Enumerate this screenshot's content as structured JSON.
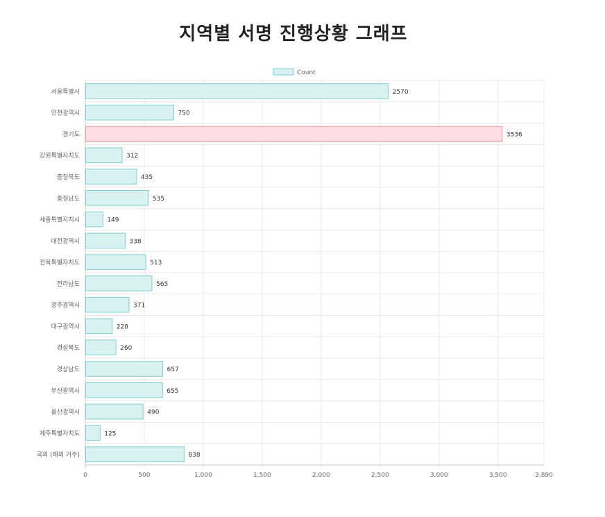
{
  "page": {
    "title": "지역별 서명 진행상황 그래프"
  },
  "chart_data": {
    "type": "bar",
    "orientation": "horizontal",
    "title": "지역별 서명 진행상황 그래프",
    "legend": {
      "position": "top",
      "label": "Count"
    },
    "categories": [
      "서울특별시",
      "인천광역시",
      "경기도",
      "강원특별자치도",
      "충청북도",
      "충청남도",
      "세종특별자치시",
      "대전광역시",
      "전북특별자치도",
      "전라남도",
      "광주광역시",
      "대구광역시",
      "경상북도",
      "경상남도",
      "부산광역시",
      "울산광역시",
      "제주특별자치도",
      "국외 (해외 거주)"
    ],
    "series": [
      {
        "name": "Count",
        "values": [
          2570,
          750,
          3536,
          312,
          435,
          535,
          149,
          338,
          513,
          565,
          371,
          228,
          260,
          657,
          655,
          490,
          125,
          838
        ]
      }
    ],
    "highlight_index": 2,
    "x_ticks": [
      "0",
      "500",
      "1,000",
      "1,500",
      "2,000",
      "2,500",
      "3,000",
      "3,500",
      "3,890"
    ],
    "x_tick_values": [
      0,
      500,
      1000,
      1500,
      2000,
      2500,
      3000,
      3500,
      3890
    ],
    "xlim": [
      0,
      3890
    ],
    "grid": true,
    "data_labels": true,
    "colors": {
      "bar_fill": "#d9f1f1",
      "bar_stroke": "#7fcfcf",
      "highlight_fill": "#ffdde3",
      "highlight_stroke": "#e8909f",
      "grid": "#e8e8e8",
      "axis": "#cccccc",
      "label_text": "#666666",
      "value_text": "#333333"
    }
  }
}
